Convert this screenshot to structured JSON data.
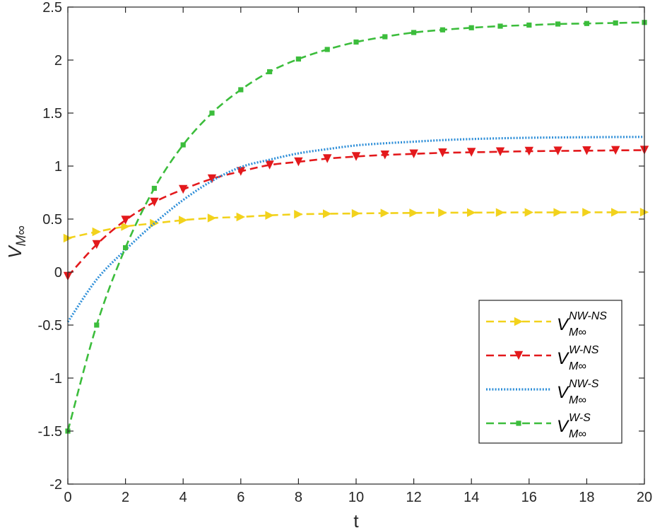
{
  "chart_data": {
    "type": "line",
    "xlabel": "t",
    "ylabel": {
      "main": "V",
      "sub": "M∞"
    },
    "xlim": [
      0,
      20
    ],
    "ylim": [
      -2,
      2.5
    ],
    "xticks": [
      0,
      2,
      4,
      6,
      8,
      10,
      12,
      14,
      16,
      18,
      20
    ],
    "yticks": [
      -2,
      -1.5,
      -1,
      -0.5,
      0,
      0.5,
      1,
      1.5,
      2,
      2.5
    ],
    "xtick_labels": [
      "0",
      "2",
      "4",
      "6",
      "8",
      "10",
      "12",
      "14",
      "16",
      "18",
      "20"
    ],
    "ytick_labels": [
      "-2",
      "-1.5",
      "-1",
      "-0.5",
      "0",
      "0.5",
      "1",
      "1.5",
      "2",
      "2.5"
    ],
    "grid": false,
    "legend_position": "lower-right",
    "x": [
      0,
      1,
      2,
      3,
      4,
      5,
      6,
      7,
      8,
      9,
      10,
      11,
      12,
      13,
      14,
      15,
      16,
      17,
      18,
      19,
      20
    ],
    "series": [
      {
        "name": "V^{NW-NS}_{M∞}",
        "legend": {
          "base": "V",
          "sup": "NW-NS",
          "sub": "M∞"
        },
        "color": "#f2d21c",
        "line_style": "dashed",
        "marker": "triangle-right",
        "values": [
          0.32,
          0.38,
          0.43,
          0.46,
          0.49,
          0.51,
          0.52,
          0.535,
          0.545,
          0.55,
          0.553,
          0.556,
          0.558,
          0.56,
          0.561,
          0.562,
          0.563,
          0.563,
          0.564,
          0.564,
          0.565
        ]
      },
      {
        "name": "V^{W-NS}_{M∞}",
        "legend": {
          "base": "V",
          "sup": "W-NS",
          "sub": "M∞"
        },
        "color": "#e3191c",
        "line_style": "dashed",
        "marker": "triangle-down",
        "values": [
          -0.04,
          0.26,
          0.49,
          0.66,
          0.78,
          0.88,
          0.95,
          1.01,
          1.04,
          1.07,
          1.09,
          1.105,
          1.115,
          1.125,
          1.13,
          1.135,
          1.14,
          1.143,
          1.145,
          1.148,
          1.15
        ]
      },
      {
        "name": "V^{NW-S}_{M∞}",
        "legend": {
          "base": "V",
          "sup": "NW-S",
          "sub": "M∞"
        },
        "color": "#2f8fd8",
        "line_style": "dotted",
        "marker": "none",
        "values": [
          -0.47,
          -0.07,
          0.21,
          0.46,
          0.68,
          0.86,
          0.99,
          1.06,
          1.12,
          1.16,
          1.195,
          1.215,
          1.23,
          1.245,
          1.255,
          1.262,
          1.267,
          1.27,
          1.272,
          1.274,
          1.275
        ]
      },
      {
        "name": "V^{W-S}_{M∞}",
        "legend": {
          "base": "V",
          "sup": "W-S",
          "sub": "M∞"
        },
        "color": "#3cbd3c",
        "line_style": "dashed",
        "marker": "square",
        "values": [
          -1.5,
          -0.5,
          0.23,
          0.79,
          1.2,
          1.5,
          1.72,
          1.89,
          2.01,
          2.1,
          2.17,
          2.22,
          2.26,
          2.285,
          2.305,
          2.32,
          2.33,
          2.34,
          2.345,
          2.35,
          2.355
        ]
      }
    ]
  }
}
